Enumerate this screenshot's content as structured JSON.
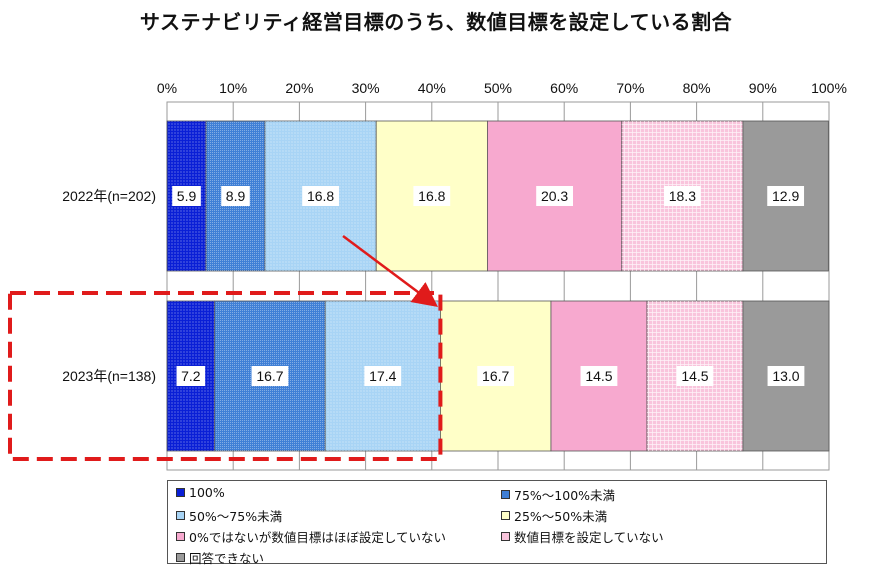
{
  "chart_data": {
    "type": "bar",
    "orientation": "horizontal",
    "stacked": "percent",
    "title": "サステナビリティ経営目標のうち、数値目標を設定している割合",
    "categories": [
      "2022年(n=202)",
      "2023年(n=138)"
    ],
    "x_ticks": [
      "0%",
      "10%",
      "20%",
      "30%",
      "40%",
      "50%",
      "60%",
      "70%",
      "80%",
      "90%",
      "100%"
    ],
    "xlim": [
      0,
      100
    ],
    "grid": true,
    "legend_position": "bottom",
    "series": [
      {
        "name": "100%",
        "color": "#0a1fd6",
        "pattern": "dots",
        "values": [
          5.9,
          7.2
        ]
      },
      {
        "name": "75%～100%未満",
        "color": "#3f7fd6",
        "pattern": "dense-dots",
        "values": [
          8.9,
          16.7
        ]
      },
      {
        "name": "50%～75%未満",
        "color": "#a8d4f5",
        "pattern": "dots",
        "values": [
          16.8,
          17.4
        ]
      },
      {
        "name": "25%～50%未満",
        "color": "#ffffc8",
        "pattern": "none",
        "values": [
          16.8,
          16.7
        ]
      },
      {
        "name": "0%ではないが数値目標はほぼ設定していない",
        "color": "#f7a9cf",
        "pattern": "none",
        "values": [
          20.3,
          14.5
        ]
      },
      {
        "name": "数値目標を設定していない",
        "color": "#f9c4dc",
        "pattern": "grid",
        "values": [
          18.3,
          14.5
        ]
      },
      {
        "name": "回答できない",
        "color": "#9a9a9a",
        "pattern": "none",
        "values": [
          12.9,
          13.0
        ]
      }
    ],
    "annotations": [
      {
        "type": "dashed-box",
        "color": "#e01b1b",
        "row": "2023年(n=138)",
        "from": 0,
        "to": 41.3
      },
      {
        "type": "arrow",
        "color": "#e01b1b",
        "from_row": "2022年(n=202)",
        "to_row": "2023年(n=138)"
      }
    ]
  }
}
